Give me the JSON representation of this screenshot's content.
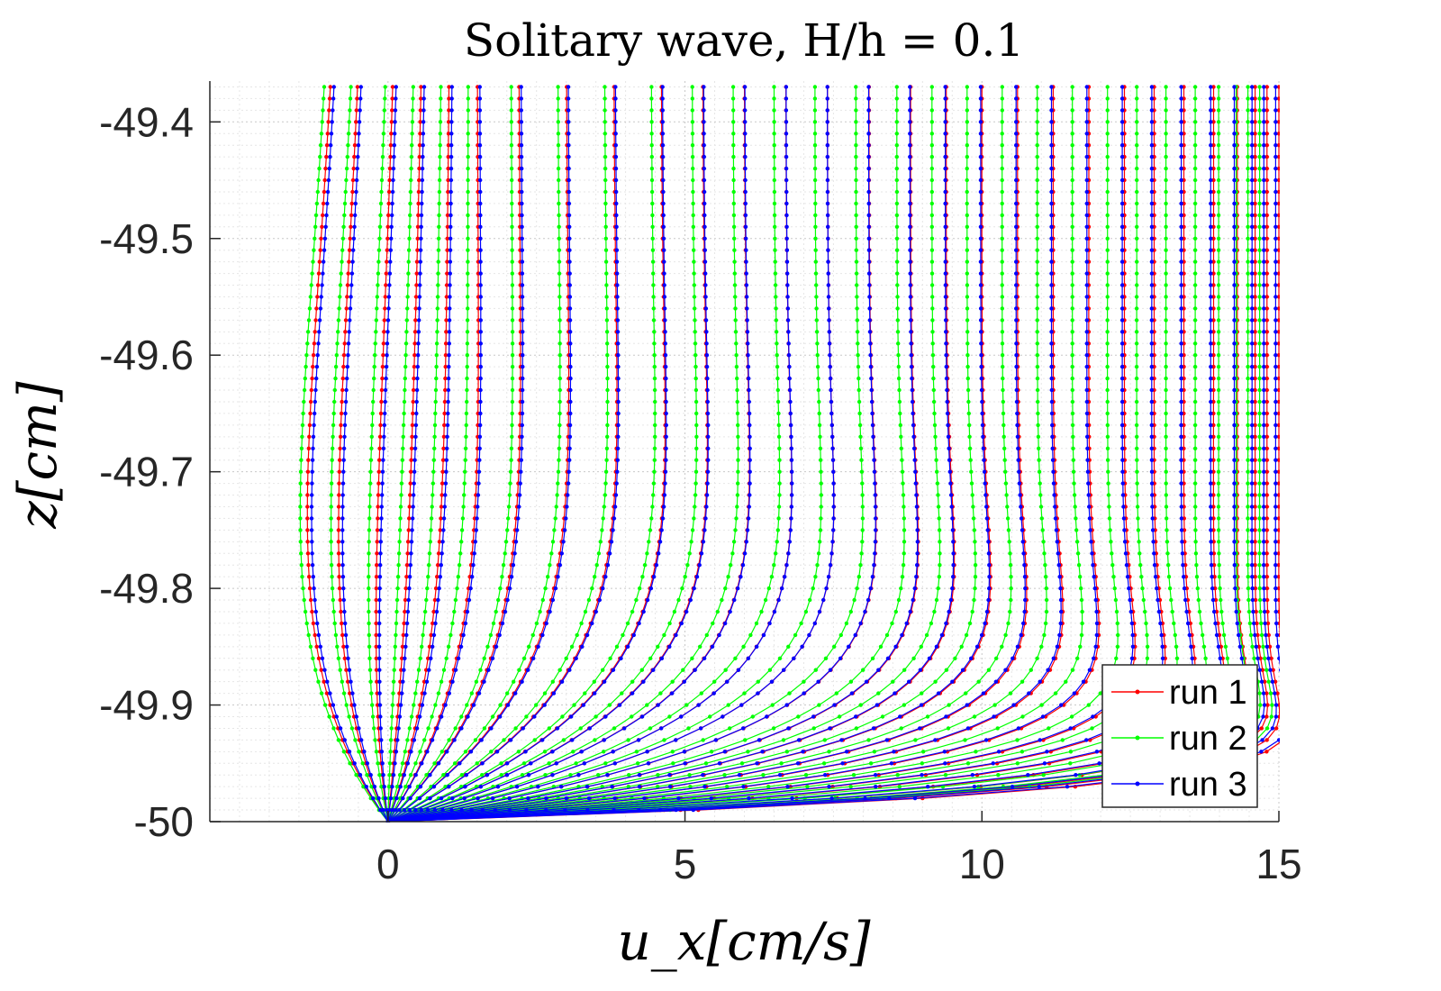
{
  "chart_data": {
    "type": "line",
    "title": "Solitary wave, H/h = 0.1",
    "xlabel": "u_x[cm/s]",
    "ylabel": "z[cm]",
    "xlim": [
      -3,
      15
    ],
    "ylim": [
      -50,
      -49.365
    ],
    "x_ticks": [
      0,
      5,
      10,
      15
    ],
    "x_tick_labels": [
      "0",
      "5",
      "10",
      "15"
    ],
    "y_ticks": [
      -50,
      -49.9,
      -49.8,
      -49.7,
      -49.6,
      -49.5,
      -49.4
    ],
    "y_tick_labels": [
      "-50",
      "-49.9",
      "-49.8",
      "-49.7",
      "-49.6",
      "-49.5",
      "-49.4"
    ],
    "grid": "major and minor, dotted",
    "legend_position": "bottom-right",
    "z_levels": [
      -50,
      -49.99,
      -49.98,
      -49.97,
      -49.96,
      -49.95,
      -49.94,
      -49.93,
      -49.92,
      -49.91,
      -49.9,
      -49.89,
      -49.88,
      -49.87,
      -49.86,
      -49.85,
      -49.84,
      -49.83,
      -49.82,
      -49.81,
      -49.8,
      -49.79,
      -49.78,
      -49.77,
      -49.76,
      -49.75,
      -49.74,
      -49.73,
      -49.72,
      -49.71,
      -49.7,
      -49.69,
      -49.68,
      -49.67,
      -49.66,
      -49.65,
      -49.64,
      -49.63,
      -49.62,
      -49.61,
      -49.6,
      -49.59,
      -49.58,
      -49.57,
      -49.56,
      -49.55,
      -49.54,
      -49.53,
      -49.52,
      -49.51,
      -49.5,
      -49.49,
      -49.48,
      -49.47,
      -49.46,
      -49.45,
      -49.44,
      -49.43,
      -49.42,
      -49.41,
      -49.4,
      -49.39,
      -49.38,
      -49.37
    ],
    "free_stream_velocities": [
      -0.6,
      -0.2,
      0.3,
      0.7,
      1.1,
      1.5,
      2.2,
      3.0,
      3.8,
      4.6,
      5.3,
      6.0,
      6.7,
      7.4,
      8.1,
      8.8,
      9.4,
      10.0,
      10.6,
      11.2,
      11.8,
      12.4,
      12.9,
      13.4,
      13.9,
      14.3,
      14.6,
      14.8,
      15.0
    ],
    "series": [
      {
        "name": "run 1",
        "color": "#ff0000",
        "velocity_factor": 1.0,
        "offset": 0.0
      },
      {
        "name": "run 2",
        "color": "#00ff00",
        "velocity_factor": 0.985,
        "offset": -0.1
      },
      {
        "name": "run 3",
        "color": "#0000ff",
        "velocity_factor": 0.993,
        "offset": 0.05
      }
    ]
  }
}
